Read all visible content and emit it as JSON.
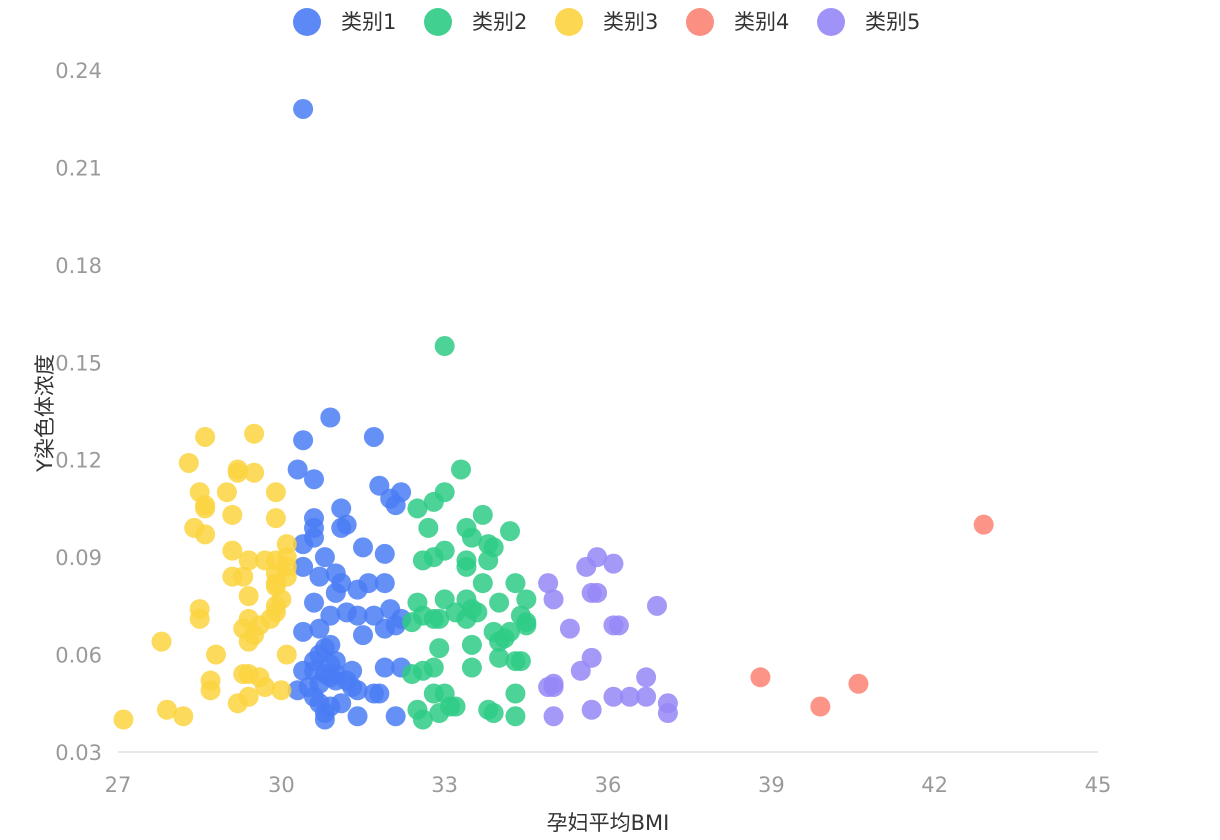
{
  "chart_data": {
    "type": "scatter",
    "xlabel": "孕妇平均BMI",
    "ylabel": "Y染色体浓度",
    "xlim": [
      27,
      45
    ],
    "ylim": [
      0.03,
      0.24
    ],
    "xticks": [
      27,
      30,
      33,
      36,
      39,
      42,
      45
    ],
    "xtick_labels": [
      "27",
      "30",
      "33",
      "36",
      "39",
      "42",
      "45"
    ],
    "yticks": [
      0.03,
      0.06,
      0.09,
      0.12,
      0.15,
      0.18,
      0.21,
      0.24
    ],
    "ytick_labels": [
      "0.03",
      "0.06",
      "0.09",
      "0.12",
      "0.15",
      "0.18",
      "0.21",
      "0.24"
    ],
    "grid": false,
    "legend_position": "top-center",
    "series": [
      {
        "name": "类别1",
        "color": "#4a7cf5",
        "points": [
          [
            30.4,
            0.228
          ],
          [
            30.9,
            0.133
          ],
          [
            31.7,
            0.127
          ],
          [
            30.4,
            0.126
          ],
          [
            30.3,
            0.117
          ],
          [
            30.6,
            0.114
          ],
          [
            31.8,
            0.112
          ],
          [
            32.2,
            0.11
          ],
          [
            32.0,
            0.108
          ],
          [
            32.1,
            0.106
          ],
          [
            31.1,
            0.105
          ],
          [
            30.6,
            0.102
          ],
          [
            31.2,
            0.1
          ],
          [
            31.1,
            0.099
          ],
          [
            30.6,
            0.099
          ],
          [
            30.6,
            0.096
          ],
          [
            30.4,
            0.094
          ],
          [
            31.5,
            0.093
          ],
          [
            31.9,
            0.091
          ],
          [
            30.8,
            0.09
          ],
          [
            30.4,
            0.087
          ],
          [
            31.0,
            0.085
          ],
          [
            30.7,
            0.084
          ],
          [
            31.1,
            0.082
          ],
          [
            31.6,
            0.082
          ],
          [
            31.9,
            0.082
          ],
          [
            31.4,
            0.08
          ],
          [
            31.0,
            0.079
          ],
          [
            30.6,
            0.076
          ],
          [
            32.0,
            0.074
          ],
          [
            31.2,
            0.073
          ],
          [
            30.9,
            0.072
          ],
          [
            31.7,
            0.072
          ],
          [
            31.4,
            0.072
          ],
          [
            32.2,
            0.071
          ],
          [
            32.1,
            0.069
          ],
          [
            31.9,
            0.068
          ],
          [
            30.7,
            0.068
          ],
          [
            30.4,
            0.067
          ],
          [
            31.5,
            0.066
          ],
          [
            30.9,
            0.063
          ],
          [
            30.8,
            0.062
          ],
          [
            30.7,
            0.06
          ],
          [
            30.6,
            0.058
          ],
          [
            31.0,
            0.058
          ],
          [
            30.9,
            0.057
          ],
          [
            31.9,
            0.056
          ],
          [
            32.2,
            0.056
          ],
          [
            30.4,
            0.055
          ],
          [
            30.6,
            0.055
          ],
          [
            31.3,
            0.055
          ],
          [
            30.8,
            0.054
          ],
          [
            31.0,
            0.054
          ],
          [
            30.9,
            0.053
          ],
          [
            31.2,
            0.052
          ],
          [
            31.0,
            0.052
          ],
          [
            30.7,
            0.051
          ],
          [
            30.5,
            0.05
          ],
          [
            31.3,
            0.05
          ],
          [
            30.3,
            0.049
          ],
          [
            31.4,
            0.049
          ],
          [
            31.7,
            0.048
          ],
          [
            31.8,
            0.048
          ],
          [
            30.6,
            0.047
          ],
          [
            30.7,
            0.045
          ],
          [
            31.1,
            0.045
          ],
          [
            30.9,
            0.044
          ],
          [
            30.8,
            0.042
          ],
          [
            31.4,
            0.041
          ],
          [
            32.1,
            0.041
          ],
          [
            30.8,
            0.04
          ]
        ]
      },
      {
        "name": "类别2",
        "color": "#2ecb85",
        "points": [
          [
            33.0,
            0.155
          ],
          [
            33.3,
            0.117
          ],
          [
            33.0,
            0.11
          ],
          [
            32.8,
            0.107
          ],
          [
            32.5,
            0.105
          ],
          [
            33.7,
            0.103
          ],
          [
            32.7,
            0.099
          ],
          [
            33.4,
            0.099
          ],
          [
            34.2,
            0.098
          ],
          [
            33.5,
            0.096
          ],
          [
            33.8,
            0.094
          ],
          [
            33.9,
            0.093
          ],
          [
            33.0,
            0.092
          ],
          [
            32.8,
            0.09
          ],
          [
            32.6,
            0.089
          ],
          [
            33.4,
            0.089
          ],
          [
            33.8,
            0.089
          ],
          [
            33.4,
            0.087
          ],
          [
            33.7,
            0.082
          ],
          [
            34.3,
            0.082
          ],
          [
            33.0,
            0.077
          ],
          [
            33.4,
            0.077
          ],
          [
            34.5,
            0.077
          ],
          [
            32.5,
            0.076
          ],
          [
            34.0,
            0.076
          ],
          [
            33.5,
            0.074
          ],
          [
            33.2,
            0.073
          ],
          [
            33.6,
            0.073
          ],
          [
            34.4,
            0.072
          ],
          [
            32.6,
            0.072
          ],
          [
            33.4,
            0.071
          ],
          [
            32.9,
            0.071
          ],
          [
            32.8,
            0.071
          ],
          [
            34.5,
            0.07
          ],
          [
            32.4,
            0.07
          ],
          [
            34.5,
            0.069
          ],
          [
            33.9,
            0.067
          ],
          [
            34.2,
            0.067
          ],
          [
            34.1,
            0.065
          ],
          [
            34.0,
            0.064
          ],
          [
            33.5,
            0.063
          ],
          [
            32.9,
            0.062
          ],
          [
            34.0,
            0.059
          ],
          [
            34.3,
            0.058
          ],
          [
            34.4,
            0.058
          ],
          [
            32.8,
            0.056
          ],
          [
            33.5,
            0.056
          ],
          [
            32.6,
            0.055
          ],
          [
            32.4,
            0.054
          ],
          [
            34.3,
            0.048
          ],
          [
            33.0,
            0.048
          ],
          [
            32.8,
            0.048
          ],
          [
            33.2,
            0.044
          ],
          [
            33.1,
            0.044
          ],
          [
            32.5,
            0.043
          ],
          [
            33.8,
            0.043
          ],
          [
            33.9,
            0.042
          ],
          [
            32.9,
            0.042
          ],
          [
            34.3,
            0.041
          ],
          [
            32.6,
            0.04
          ]
        ]
      },
      {
        "name": "类别3",
        "color": "#fcd33f",
        "points": [
          [
            28.6,
            0.127
          ],
          [
            29.5,
            0.128
          ],
          [
            28.3,
            0.119
          ],
          [
            29.2,
            0.117
          ],
          [
            29.2,
            0.116
          ],
          [
            29.5,
            0.116
          ],
          [
            29.9,
            0.11
          ],
          [
            29.0,
            0.11
          ],
          [
            28.5,
            0.11
          ],
          [
            28.6,
            0.106
          ],
          [
            28.6,
            0.105
          ],
          [
            29.1,
            0.103
          ],
          [
            29.9,
            0.102
          ],
          [
            28.4,
            0.099
          ],
          [
            28.6,
            0.097
          ],
          [
            30.1,
            0.094
          ],
          [
            29.1,
            0.092
          ],
          [
            30.1,
            0.09
          ],
          [
            29.9,
            0.089
          ],
          [
            29.7,
            0.089
          ],
          [
            29.4,
            0.089
          ],
          [
            30.1,
            0.087
          ],
          [
            29.9,
            0.085
          ],
          [
            29.1,
            0.084
          ],
          [
            29.3,
            0.084
          ],
          [
            30.1,
            0.084
          ],
          [
            29.9,
            0.082
          ],
          [
            29.9,
            0.081
          ],
          [
            29.4,
            0.078
          ],
          [
            30.0,
            0.077
          ],
          [
            29.9,
            0.075
          ],
          [
            28.5,
            0.074
          ],
          [
            29.9,
            0.073
          ],
          [
            29.8,
            0.071
          ],
          [
            28.5,
            0.071
          ],
          [
            29.4,
            0.071
          ],
          [
            29.6,
            0.069
          ],
          [
            29.3,
            0.068
          ],
          [
            29.5,
            0.066
          ],
          [
            29.4,
            0.064
          ],
          [
            27.8,
            0.064
          ],
          [
            30.1,
            0.06
          ],
          [
            28.8,
            0.06
          ],
          [
            29.3,
            0.054
          ],
          [
            29.4,
            0.054
          ],
          [
            29.6,
            0.053
          ],
          [
            28.7,
            0.052
          ],
          [
            29.7,
            0.05
          ],
          [
            28.7,
            0.049
          ],
          [
            30.0,
            0.049
          ],
          [
            29.4,
            0.047
          ],
          [
            29.2,
            0.045
          ],
          [
            27.9,
            0.043
          ],
          [
            28.2,
            0.041
          ],
          [
            27.1,
            0.04
          ]
        ]
      },
      {
        "name": "类别4",
        "color": "#fb8373",
        "points": [
          [
            42.9,
            0.1
          ],
          [
            38.8,
            0.053
          ],
          [
            40.6,
            0.051
          ],
          [
            39.9,
            0.044
          ]
        ]
      },
      {
        "name": "类别5",
        "color": "#9587f7",
        "points": [
          [
            35.8,
            0.09
          ],
          [
            36.1,
            0.088
          ],
          [
            35.6,
            0.087
          ],
          [
            34.9,
            0.082
          ],
          [
            35.8,
            0.079
          ],
          [
            35.7,
            0.079
          ],
          [
            35.0,
            0.077
          ],
          [
            36.9,
            0.075
          ],
          [
            36.1,
            0.069
          ],
          [
            36.2,
            0.069
          ],
          [
            35.3,
            0.068
          ],
          [
            35.7,
            0.059
          ],
          [
            35.5,
            0.055
          ],
          [
            36.7,
            0.053
          ],
          [
            35.0,
            0.051
          ],
          [
            34.9,
            0.05
          ],
          [
            35.0,
            0.05
          ],
          [
            36.1,
            0.047
          ],
          [
            36.4,
            0.047
          ],
          [
            36.7,
            0.047
          ],
          [
            37.1,
            0.045
          ],
          [
            35.7,
            0.043
          ],
          [
            37.1,
            0.042
          ],
          [
            35.0,
            0.041
          ]
        ]
      }
    ]
  }
}
